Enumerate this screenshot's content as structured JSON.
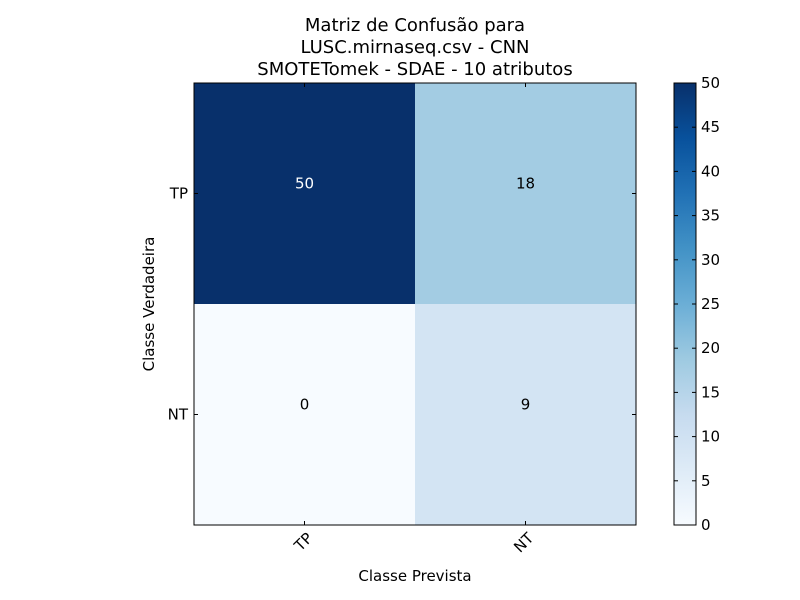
{
  "chart_data": {
    "type": "heatmap",
    "title_lines": [
      "Matriz de Confusão para",
      "LUSC.mirnaseq.csv - CNN",
      "SMOTETomek - SDAE - 10 atributos"
    ],
    "xlabel": "Classe Prevista",
    "ylabel": "Classe Verdadeira",
    "x_categories": [
      "TP",
      "NT"
    ],
    "y_categories": [
      "TP",
      "NT"
    ],
    "values": [
      [
        50,
        18
      ],
      [
        0,
        9
      ]
    ],
    "colorbar": {
      "min": 0,
      "max": 50,
      "ticks": [
        "0",
        "5",
        "10",
        "15",
        "20",
        "25",
        "30",
        "35",
        "40",
        "45",
        "50"
      ]
    },
    "colormap": "Blues",
    "grid": false
  }
}
